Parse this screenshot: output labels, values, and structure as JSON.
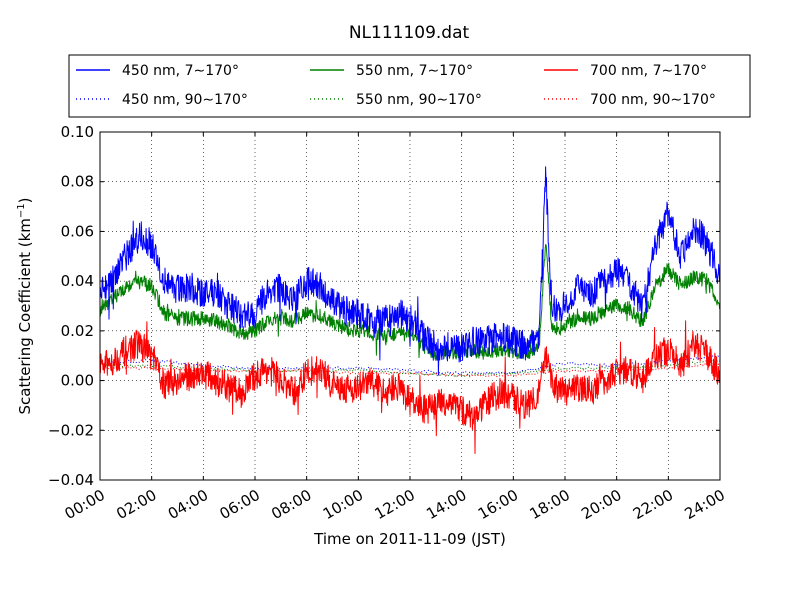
{
  "chart_data": {
    "type": "line",
    "title": "NL111109.dat",
    "xlabel": "Time on 2011-11-09 (JST)",
    "ylabel": "Scattering Coefficient (km",
    "ylabel_sup": "−1",
    "ylabel_end": ")",
    "xlim": [
      0,
      24
    ],
    "ylim": [
      -0.04,
      0.1
    ],
    "grid": true,
    "grid_style": "dotted",
    "legend_placement": "top, above plot, 3 columns",
    "x_ticks": [
      0,
      2,
      4,
      6,
      8,
      10,
      12,
      14,
      16,
      18,
      20,
      22,
      24
    ],
    "x_tick_labels": [
      "00:00",
      "02:00",
      "04:00",
      "06:00",
      "08:00",
      "10:00",
      "12:00",
      "14:00",
      "16:00",
      "18:00",
      "20:00",
      "22:00",
      "24:00"
    ],
    "y_ticks": [
      -0.04,
      -0.02,
      0.0,
      0.02,
      0.04,
      0.06,
      0.08,
      0.1
    ],
    "y_tick_labels": [
      "−0.04",
      "−0.02",
      "0.00",
      "0.02",
      "0.04",
      "0.06",
      "0.08",
      "0.10"
    ],
    "series": [
      {
        "name": "450 nm, 7∼170°",
        "color": "#0000ff",
        "style": "solid",
        "x": [
          0,
          0.5,
          1,
          1.5,
          2,
          2.5,
          3,
          3.5,
          4,
          4.5,
          5,
          5.5,
          6,
          6.5,
          7,
          7.5,
          8,
          8.5,
          9,
          9.5,
          10,
          10.5,
          11,
          11.5,
          12,
          12.5,
          13,
          13.5,
          14,
          14.5,
          15,
          15.5,
          16,
          16.5,
          17,
          17.25,
          17.5,
          18,
          18.5,
          19,
          19.5,
          20,
          20.5,
          21,
          21.5,
          22,
          22.5,
          23,
          23.5,
          24
        ],
        "y": [
          0.035,
          0.042,
          0.05,
          0.058,
          0.055,
          0.04,
          0.037,
          0.038,
          0.034,
          0.036,
          0.03,
          0.026,
          0.027,
          0.036,
          0.037,
          0.032,
          0.04,
          0.038,
          0.031,
          0.028,
          0.027,
          0.025,
          0.024,
          0.027,
          0.025,
          0.018,
          0.013,
          0.014,
          0.013,
          0.016,
          0.016,
          0.018,
          0.016,
          0.014,
          0.018,
          0.083,
          0.028,
          0.03,
          0.038,
          0.034,
          0.04,
          0.044,
          0.04,
          0.028,
          0.055,
          0.067,
          0.05,
          0.062,
          0.055,
          0.042
        ],
        "amp": 0.006
      },
      {
        "name": "450 nm, 90∼170°",
        "color": "#0000ff",
        "style": "dotted",
        "x": [
          0,
          2,
          4,
          6,
          8,
          10,
          12,
          14,
          16,
          18,
          20,
          22,
          24
        ],
        "y": [
          0.007,
          0.008,
          0.006,
          0.005,
          0.005,
          0.005,
          0.004,
          0.003,
          0.003,
          0.007,
          0.006,
          0.008,
          0.01
        ],
        "amp": 0.0006
      },
      {
        "name": "550 nm, 7∼170°",
        "color": "#008000",
        "style": "solid",
        "x": [
          0,
          0.5,
          1,
          1.5,
          2,
          2.5,
          3,
          3.5,
          4,
          4.5,
          5,
          5.5,
          6,
          6.5,
          7,
          7.5,
          8,
          8.5,
          9,
          9.5,
          10,
          10.5,
          11,
          11.5,
          12,
          12.5,
          13,
          13.5,
          14,
          14.5,
          15,
          15.5,
          16,
          16.5,
          17,
          17.25,
          17.5,
          18,
          18.5,
          19,
          19.5,
          20,
          20.5,
          21,
          21.5,
          22,
          22.5,
          23,
          23.5,
          24
        ],
        "y": [
          0.029,
          0.033,
          0.038,
          0.04,
          0.038,
          0.027,
          0.025,
          0.025,
          0.025,
          0.024,
          0.022,
          0.019,
          0.02,
          0.024,
          0.025,
          0.024,
          0.027,
          0.026,
          0.023,
          0.021,
          0.02,
          0.019,
          0.018,
          0.019,
          0.019,
          0.014,
          0.011,
          0.012,
          0.011,
          0.012,
          0.011,
          0.013,
          0.012,
          0.011,
          0.014,
          0.057,
          0.02,
          0.022,
          0.026,
          0.025,
          0.028,
          0.03,
          0.029,
          0.023,
          0.038,
          0.045,
          0.038,
          0.042,
          0.04,
          0.03
        ],
        "amp": 0.003
      },
      {
        "name": "550 nm, 90∼170°",
        "color": "#008000",
        "style": "dotted",
        "x": [
          0,
          2,
          4,
          6,
          8,
          10,
          12,
          14,
          16,
          18,
          20,
          22,
          24
        ],
        "y": [
          0.006,
          0.006,
          0.005,
          0.004,
          0.004,
          0.004,
          0.003,
          0.002,
          0.003,
          0.005,
          0.005,
          0.006,
          0.008
        ],
        "amp": 0.0005
      },
      {
        "name": "700 nm, 7∼170°",
        "color": "#ff0000",
        "style": "solid",
        "x": [
          0,
          0.5,
          1,
          1.5,
          2,
          2.5,
          3,
          3.5,
          4,
          4.5,
          5,
          5.5,
          6,
          6.5,
          7,
          7.5,
          8,
          8.5,
          9,
          9.5,
          10,
          10.5,
          11,
          11.5,
          12,
          12.5,
          13,
          13.5,
          14,
          14.5,
          15,
          15.5,
          16,
          16.5,
          17,
          17.25,
          17.5,
          18,
          18.5,
          19,
          19.5,
          20,
          20.5,
          21,
          21.5,
          22,
          22.5,
          23,
          23.5,
          24
        ],
        "y": [
          0.005,
          0.008,
          0.012,
          0.015,
          0.01,
          -0.002,
          0.0,
          0.002,
          0.003,
          0.0,
          -0.003,
          -0.005,
          0.002,
          0.005,
          0.0,
          -0.005,
          0.003,
          0.005,
          -0.002,
          -0.003,
          -0.003,
          0.0,
          -0.005,
          -0.002,
          -0.008,
          -0.012,
          -0.01,
          -0.008,
          -0.012,
          -0.015,
          -0.008,
          -0.005,
          -0.007,
          -0.01,
          -0.004,
          0.01,
          -0.002,
          -0.005,
          -0.003,
          -0.004,
          0.0,
          0.003,
          0.005,
          0.0,
          0.01,
          0.012,
          0.005,
          0.015,
          0.01,
          0.003
        ],
        "amp": 0.006
      },
      {
        "name": "700 nm, 90∼170°",
        "color": "#ff0000",
        "style": "dotted",
        "x": [
          0,
          2,
          4,
          6,
          8,
          10,
          12,
          14,
          16,
          18,
          20,
          22,
          24
        ],
        "y": [
          0.005,
          0.005,
          0.004,
          0.004,
          0.004,
          0.003,
          0.003,
          0.002,
          0.002,
          0.004,
          0.004,
          0.005,
          0.007
        ],
        "amp": 0.0005
      }
    ]
  }
}
